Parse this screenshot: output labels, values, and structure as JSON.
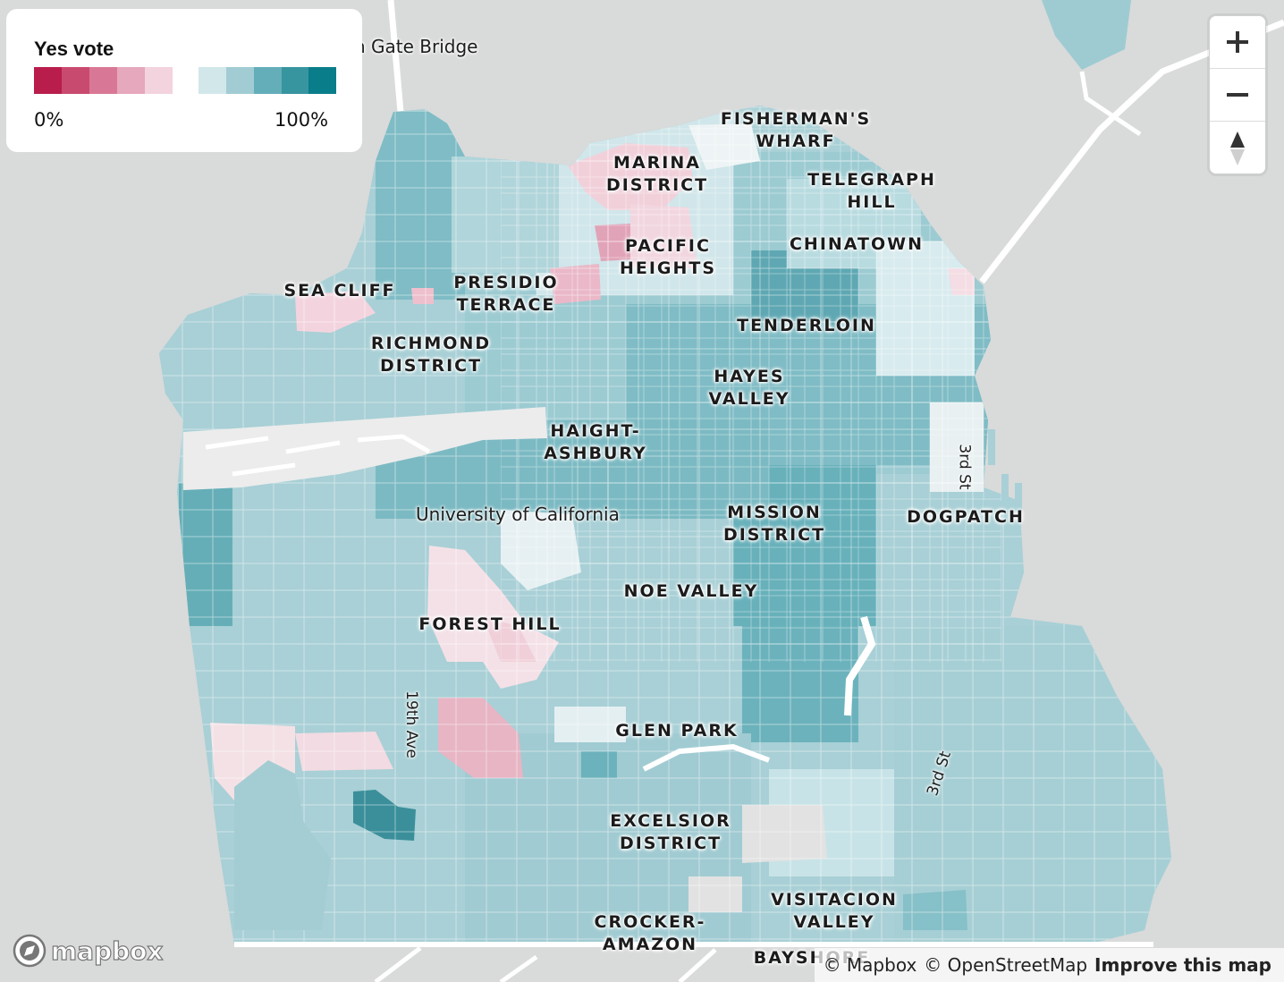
{
  "legend": {
    "title": "Yes vote",
    "min_label": "0%",
    "max_label": "100%",
    "no_colors": [
      "#b81d4c",
      "#c94a6f",
      "#d97896",
      "#e5a8bc",
      "#f3d3de"
    ],
    "yes_colors": [
      "#d2e7ea",
      "#a2ccd3",
      "#63aeb8",
      "#37959f",
      "#0a7d8a"
    ]
  },
  "map": {
    "colors": {
      "background": "#d9dada",
      "water": "#d9dada",
      "park": "#ededed",
      "road": "#ffffff",
      "ocean_fill": "#d9dada"
    },
    "place_labels": {
      "golden_gate": "n Gate Bridge",
      "university": "University of California"
    },
    "street_labels": {
      "ave19": "19th Ave",
      "st3_north": "3rd St",
      "st3_south": "3rd St"
    },
    "neighborhoods": [
      {
        "key": "fishermans",
        "text": "FISHERMAN'S\nWHARF"
      },
      {
        "key": "marina",
        "text": "MARINA\nDISTRICT"
      },
      {
        "key": "telegraph",
        "text": "TELEGRAPH\nHILL"
      },
      {
        "key": "pacific",
        "text": "PACIFIC\nHEIGHTS"
      },
      {
        "key": "chinatown",
        "text": "CHINATOWN"
      },
      {
        "key": "seacliff",
        "text": "SEA CLIFF"
      },
      {
        "key": "presidio",
        "text": "PRESIDIO\nTERRACE"
      },
      {
        "key": "tenderloin",
        "text": "TENDERLOIN"
      },
      {
        "key": "richmond",
        "text": "RICHMOND\nDISTRICT"
      },
      {
        "key": "hayes",
        "text": "HAYES\nVALLEY"
      },
      {
        "key": "haight",
        "text": "HAIGHT-\nASHBURY"
      },
      {
        "key": "mission",
        "text": "MISSION\nDISTRICT"
      },
      {
        "key": "dogpatch",
        "text": "DOGPATCH"
      },
      {
        "key": "noe",
        "text": "NOE VALLEY"
      },
      {
        "key": "foresthill",
        "text": "FOREST HILL"
      },
      {
        "key": "glenpark",
        "text": "GLEN PARK"
      },
      {
        "key": "excelsior",
        "text": "EXCELSIOR\nDISTRICT"
      },
      {
        "key": "visitacion",
        "text": "VISITACION\nVALLEY"
      },
      {
        "key": "crocker",
        "text": "CROCKER-\nAMAZON"
      },
      {
        "key": "bayshore",
        "text": "BAYSHORE"
      }
    ]
  },
  "controls": {
    "zoom_in_icon": "plus-icon",
    "zoom_out_icon": "minus-icon",
    "compass_icon": "compass-icon"
  },
  "branding": {
    "logo_text": "mapbox",
    "logo_icon": "mapbox-logo-icon"
  },
  "attribution": {
    "mapbox": "© Mapbox",
    "osm": "© OpenStreetMap",
    "improve": "Improve this map"
  }
}
